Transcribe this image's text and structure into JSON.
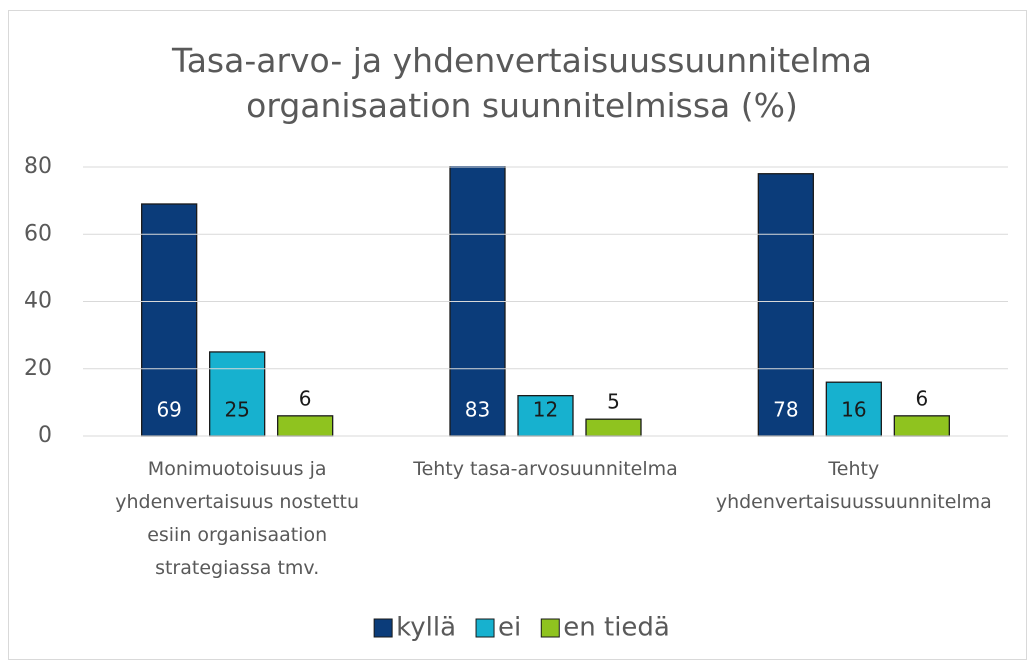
{
  "chart_data": {
    "type": "bar",
    "title": "Tasa-arvo- ja yhdenvertaisuussuunnitelma organisaation suunnitelmissa (%)",
    "categories": [
      "Monimuotoisuus ja yhdenvertaisuus nostettu esiin organisaation strategiassa tmv.",
      "Tehty tasa-arvosuunnitelma",
      "Tehty yhdenvertaisuussuunnitelma"
    ],
    "series": [
      {
        "name": "kyllä",
        "color": "#0b3c7a",
        "values": [
          69,
          83,
          78
        ]
      },
      {
        "name": "ei",
        "color": "#17b1cf",
        "values": [
          25,
          12,
          16
        ]
      },
      {
        "name": "en tiedä",
        "color": "#8fc31f",
        "values": [
          6,
          5,
          6
        ]
      }
    ],
    "ylim": [
      0,
      80
    ],
    "yticks": [
      0,
      20,
      40,
      60,
      80
    ],
    "grid": true,
    "legend": "bottom"
  }
}
